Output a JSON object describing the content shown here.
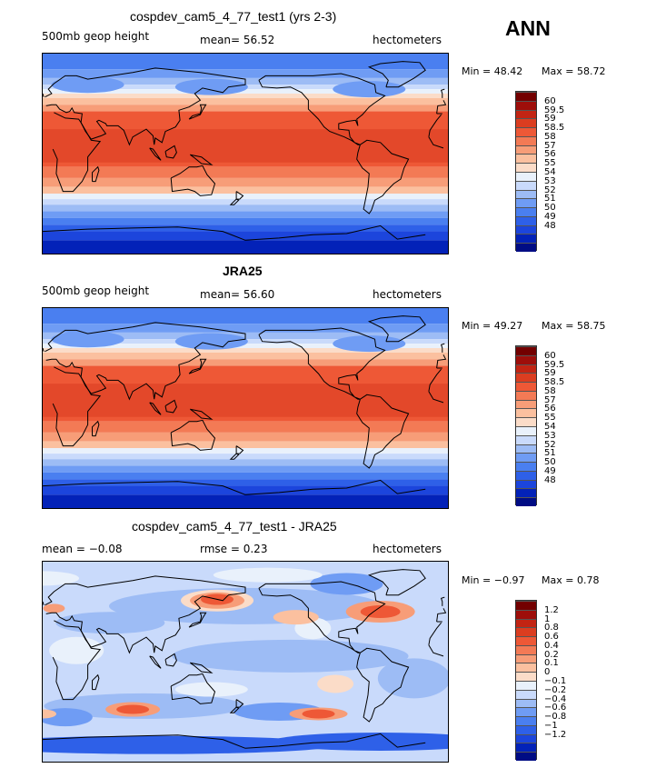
{
  "season": "ANN",
  "panels": [
    {
      "title": "cospdev_cam5_4_77_test1 (yrs 2-3)",
      "left_text": "500mb geop height",
      "mid_text": "mean=  56.52",
      "right_text": "hectometers",
      "min_label": "Min =  48.42",
      "max_label": "Max =  58.72",
      "field": "model",
      "colors": [
        "#000c84",
        "#0322b8",
        "#1c45dc",
        "#2e60e8",
        "#4a7ff0",
        "#6f9cf4",
        "#9dbcf5",
        "#c9dafb",
        "#e9f1fb",
        "#fbdcc8",
        "#fbc09f",
        "#f79d78",
        "#f37a55",
        "#ee5836",
        "#db3d20",
        "#c22413",
        "#9e0e0a",
        "#730000"
      ],
      "levels": [
        "60",
        "59.5",
        "59",
        "58.5",
        "58",
        "57",
        "56",
        "55",
        "54",
        "53",
        "52",
        "51",
        "50",
        "49",
        "48"
      ]
    },
    {
      "title": "JRA25",
      "left_text": "500mb geop height",
      "mid_text": "mean=  56.60",
      "right_text": "hectometers",
      "min_label": "Min =  49.27",
      "max_label": "Max =  58.75",
      "field": "obs",
      "colors": [
        "#000c84",
        "#0322b8",
        "#1c45dc",
        "#2e60e8",
        "#4a7ff0",
        "#6f9cf4",
        "#9dbcf5",
        "#c9dafb",
        "#e9f1fb",
        "#fbdcc8",
        "#fbc09f",
        "#f79d78",
        "#f37a55",
        "#ee5836",
        "#db3d20",
        "#c22413",
        "#9e0e0a",
        "#730000"
      ],
      "levels": [
        "60",
        "59.5",
        "59",
        "58.5",
        "58",
        "57",
        "56",
        "55",
        "54",
        "53",
        "52",
        "51",
        "50",
        "49",
        "48"
      ]
    },
    {
      "title": "cospdev_cam5_4_77_test1 - JRA25",
      "left_text": "mean =  −0.08",
      "mid_text": "rmse =   0.23",
      "right_text": "hectometers",
      "min_label": "Min =  −0.97",
      "max_label": "Max =   0.78",
      "field": "diff",
      "colors": [
        "#000c84",
        "#0322b8",
        "#1c45dc",
        "#2e60e8",
        "#4a7ff0",
        "#6f9cf4",
        "#9dbcf5",
        "#c9dafb",
        "#e9f1fb",
        "#fbdcc8",
        "#fbc09f",
        "#f79d78",
        "#f37a55",
        "#ee5836",
        "#db3d20",
        "#c22413",
        "#9e0e0a",
        "#730000"
      ],
      "levels": [
        "1.2",
        "1",
        "0.8",
        "0.6",
        "0.4",
        "0.2",
        "0.1",
        "0",
        "−0.1",
        "−0.2",
        "−0.4",
        "−0.6",
        "−0.8",
        "−1",
        "−1.2"
      ]
    }
  ]
}
